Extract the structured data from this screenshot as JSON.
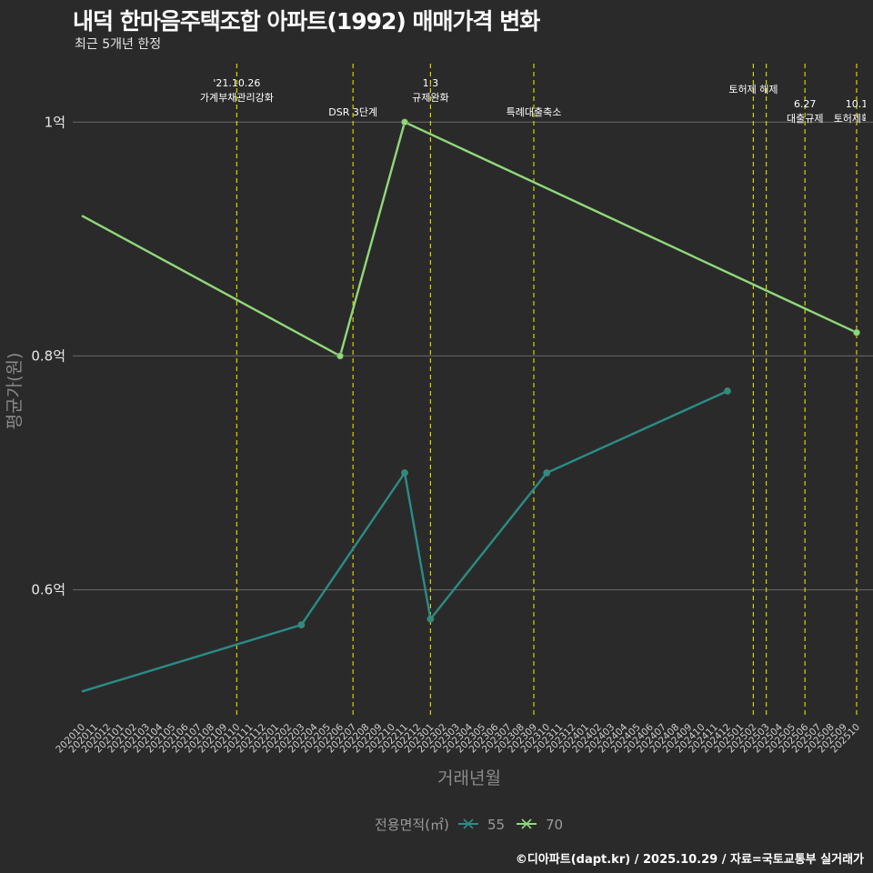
{
  "header": {
    "title": "내덕 한마음주택조합 아파트(1992) 매매가격 변화",
    "subtitle": "최근 5개년 한정"
  },
  "caption": "©디아파트(dapt.kr) / 2025.10.29 / 자료=국토교통부 실거래가",
  "colors": {
    "background": "#2b2a2a",
    "grid": "#6b6b6b",
    "event_line": "#d4d400",
    "series_55": "#2a8c87",
    "series_70": "#8fd97a"
  },
  "chart_data": {
    "type": "line",
    "title": "내덕 한마음주택조합 아파트(1992) 매매가격 변화",
    "xlabel": "거래년월",
    "ylabel": "평균가(원)",
    "ylim": [
      0.49,
      1.05
    ],
    "yticks": [
      0.6,
      0.8,
      1.0
    ],
    "ytick_labels": [
      "0.6억",
      "0.8억",
      "1억"
    ],
    "x_months": [
      "202010",
      "202011",
      "202012",
      "202101",
      "202102",
      "202103",
      "202104",
      "202105",
      "202106",
      "202107",
      "202108",
      "202109",
      "202110",
      "202111",
      "202112",
      "202201",
      "202202",
      "202203",
      "202204",
      "202205",
      "202206",
      "202207",
      "202208",
      "202209",
      "202210",
      "202211",
      "202212",
      "202301",
      "202302",
      "202303",
      "202304",
      "202305",
      "202306",
      "202307",
      "202308",
      "202309",
      "202310",
      "202311",
      "202312",
      "202401",
      "202402",
      "202403",
      "202404",
      "202405",
      "202406",
      "202407",
      "202408",
      "202409",
      "202410",
      "202411",
      "202412",
      "202501",
      "202502",
      "202503",
      "202504",
      "202505",
      "202506",
      "202507",
      "202508",
      "202509",
      "202510"
    ],
    "legend_title": "전용면적(㎡)",
    "series": [
      {
        "name": "55",
        "points": [
          {
            "x": "202010",
            "y": 0.513,
            "marker": false
          },
          {
            "x": "202203",
            "y": 0.57,
            "marker": true
          },
          {
            "x": "202211",
            "y": 0.7,
            "marker": true
          },
          {
            "x": "202301",
            "y": 0.575,
            "marker": true
          },
          {
            "x": "202310",
            "y": 0.7,
            "marker": true
          },
          {
            "x": "202412",
            "y": 0.77,
            "marker": true
          }
        ]
      },
      {
        "name": "70",
        "points": [
          {
            "x": "202010",
            "y": 0.92,
            "marker": false
          },
          {
            "x": "202206",
            "y": 0.8,
            "marker": true
          },
          {
            "x": "202211",
            "y": 1.0,
            "marker": true
          },
          {
            "x": "202510",
            "y": 0.82,
            "marker": true
          }
        ]
      }
    ],
    "events": [
      {
        "x": "202110",
        "lines": [
          "'21.10.26",
          "가계부채관리강화"
        ],
        "row": 0
      },
      {
        "x": "202207",
        "lines": [
          "DSR 3단계"
        ],
        "row": 2
      },
      {
        "x": "202301",
        "lines": [
          "1.3",
          "규제완화"
        ],
        "row": 0
      },
      {
        "x": "202309",
        "lines": [
          "특례대출축소"
        ],
        "row": 2
      },
      {
        "x": "202502",
        "lines": [
          "토허제 해제"
        ],
        "row": 1
      },
      {
        "x": "202503",
        "lines": [],
        "row": 1
      },
      {
        "x": "202506",
        "lines": [
          "6.27",
          "대출규제"
        ],
        "row": 3
      },
      {
        "x": "202510",
        "lines": [
          "10.1",
          "토허제확대"
        ],
        "row": 3
      }
    ]
  }
}
